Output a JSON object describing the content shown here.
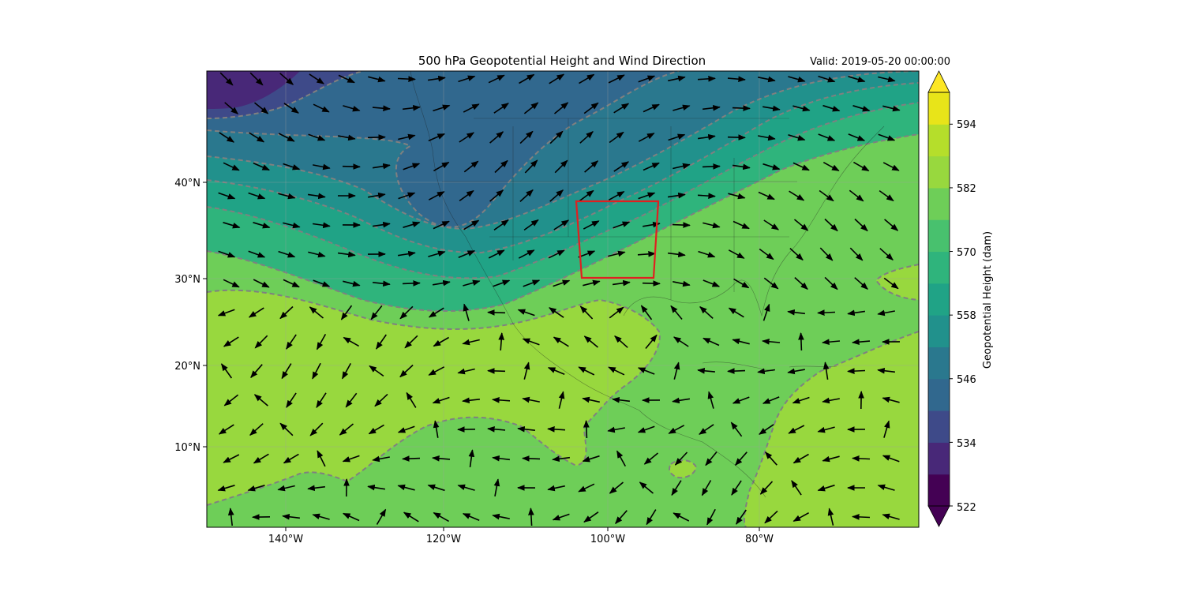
{
  "title": "500 hPa Geopotential Height and Wind Direction",
  "valid_label": "Valid: 2019-05-20 00:00:00",
  "colorbar": {
    "label": "Geopotential Height (dam)",
    "ticks": [
      "522",
      "534",
      "546",
      "558",
      "570",
      "582",
      "594"
    ],
    "levels": [
      522,
      528,
      534,
      540,
      546,
      552,
      558,
      564,
      570,
      576,
      582,
      588,
      594,
      600
    ],
    "colors": [
      "#440154",
      "#482878",
      "#3e4a89",
      "#31688e",
      "#2a788e",
      "#21918c",
      "#20a386",
      "#2fb47c",
      "#48c16e",
      "#6ece58",
      "#98d83e",
      "#b5de2b",
      "#e8e419"
    ],
    "under_color": "#440154",
    "over_color": "#fde725"
  },
  "map": {
    "lon_range": [
      -150,
      -60
    ],
    "lat_range": [
      1,
      52
    ],
    "lon_ticks": [
      "140°W",
      "120°W",
      "100°W",
      "80°W"
    ],
    "lat_ticks": [
      "10°N",
      "20°N",
      "30°N",
      "40°N"
    ],
    "contour_color": "#808080",
    "highlight_box_color": "#e02020",
    "arrow_color": "#000000"
  }
}
